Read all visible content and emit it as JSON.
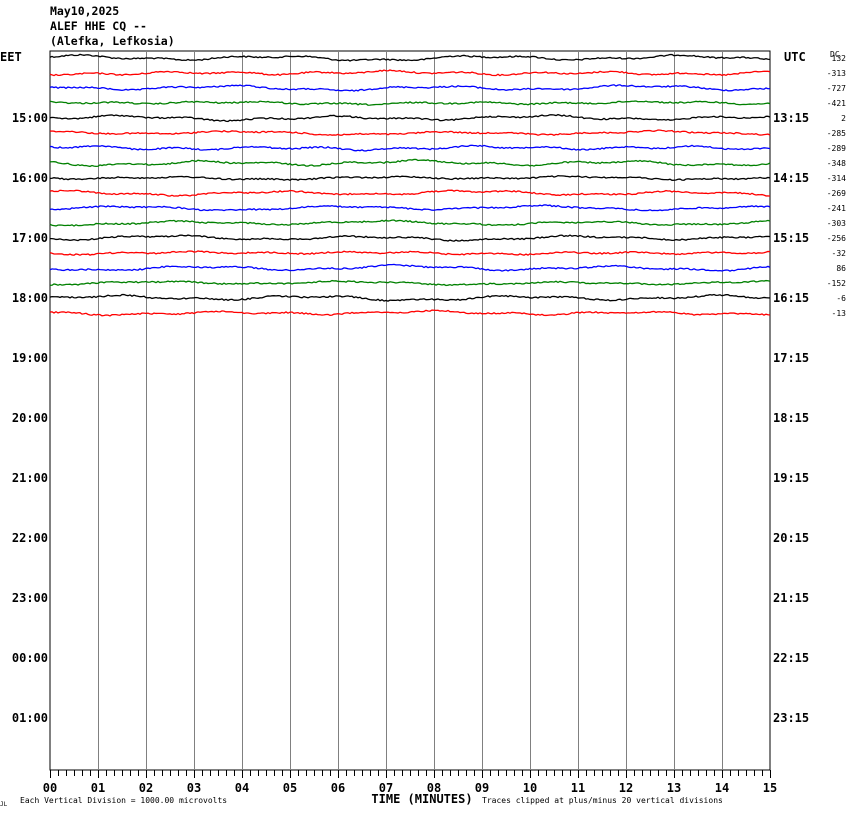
{
  "header": {
    "date": "May10,2025",
    "station": "ALEF HHE CQ --",
    "location": "(Alefka, Lefkosia)"
  },
  "chart_data": {
    "type": "line",
    "title": "",
    "left_axis_label": "EET",
    "right_axis_label": "UTC",
    "dc_label": "DC",
    "xlabel": "TIME (MINUTES)",
    "xlim": [
      0,
      15
    ],
    "x_ticks": [
      "00",
      "01",
      "02",
      "03",
      "04",
      "05",
      "06",
      "07",
      "08",
      "09",
      "10",
      "11",
      "12",
      "13",
      "14",
      "15"
    ],
    "left_hour_labels": [
      "15:00",
      "16:00",
      "17:00",
      "18:00",
      "19:00",
      "20:00",
      "21:00",
      "22:00",
      "23:00",
      "00:00",
      "01:00"
    ],
    "right_hour_labels": [
      "13:15",
      "14:15",
      "15:15",
      "16:15",
      "17:15",
      "18:15",
      "19:15",
      "20:15",
      "21:15",
      "22:15",
      "23:15"
    ],
    "first_left_label": "EET",
    "first_right_label": "UTC",
    "rows_total": 48,
    "rows_per_hour": 4,
    "trace_colors": [
      "#000000",
      "#ff0000",
      "#0000ff",
      "#008000"
    ],
    "dc_offsets": [
      "132",
      "-313",
      "-727",
      "-421",
      "2",
      "-285",
      "-289",
      "-348",
      "-314",
      "-269",
      "-241",
      "-303",
      "-256",
      "-32",
      "86",
      "-152",
      "-6",
      "-13"
    ],
    "footer_left": "Each Vertical Division = 1000.00 microvolts",
    "footer_right": "Traces clipped at plus/minus 20 vertical divisions",
    "footer_corner": "JL"
  }
}
